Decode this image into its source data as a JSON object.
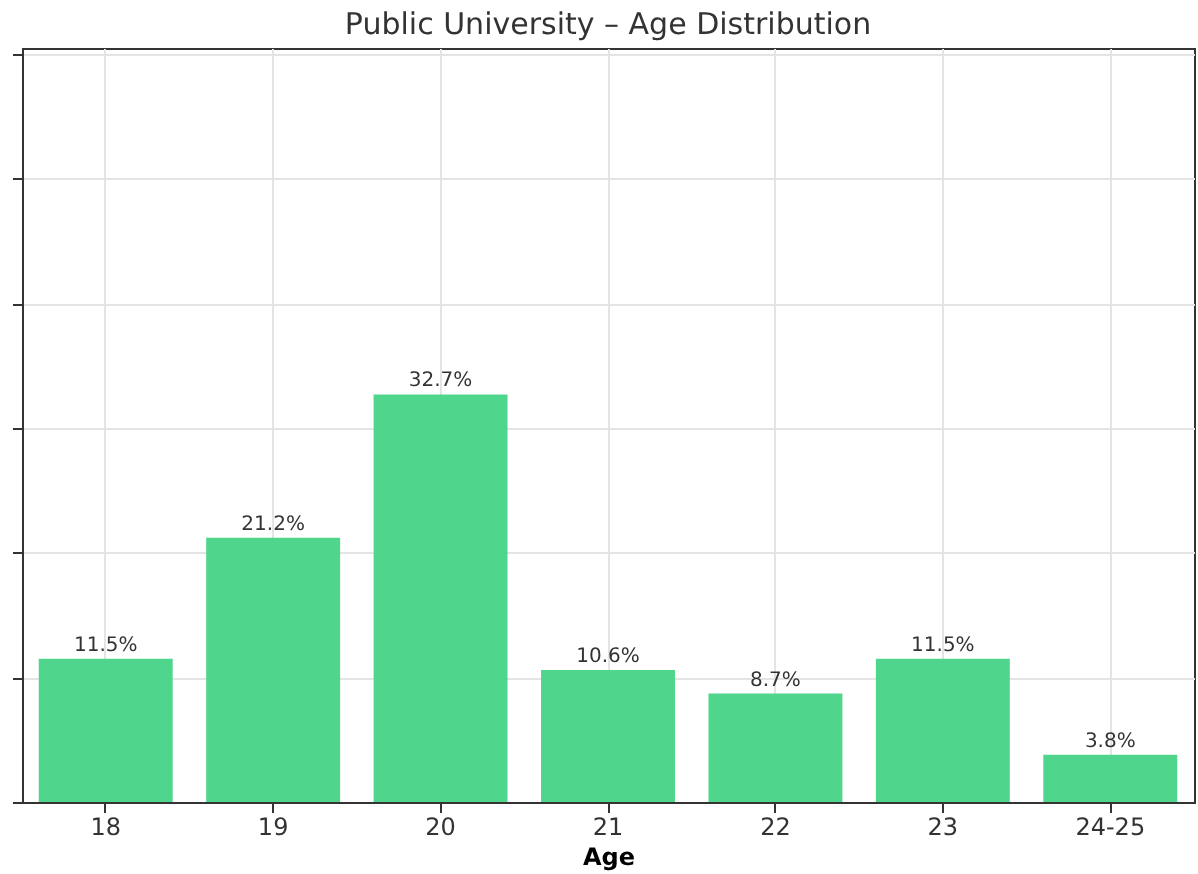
{
  "chart_data": {
    "type": "bar",
    "title": "Public University – Age Distribution",
    "xlabel": "Age",
    "categories": [
      "18",
      "19",
      "20",
      "21",
      "22",
      "23",
      "24-25"
    ],
    "values": [
      11.5,
      21.2,
      32.7,
      10.6,
      8.7,
      11.5,
      3.8
    ],
    "value_labels": [
      "11.5%",
      "21.2%",
      "32.7%",
      "10.6%",
      "8.7%",
      "11.5%",
      "3.8%"
    ],
    "color": "#50d68c",
    "ylim": [
      0,
      60.5
    ],
    "yticks": [
      0,
      10,
      20,
      30,
      40,
      50,
      60
    ],
    "grid": true,
    "tick_labels": "x"
  }
}
